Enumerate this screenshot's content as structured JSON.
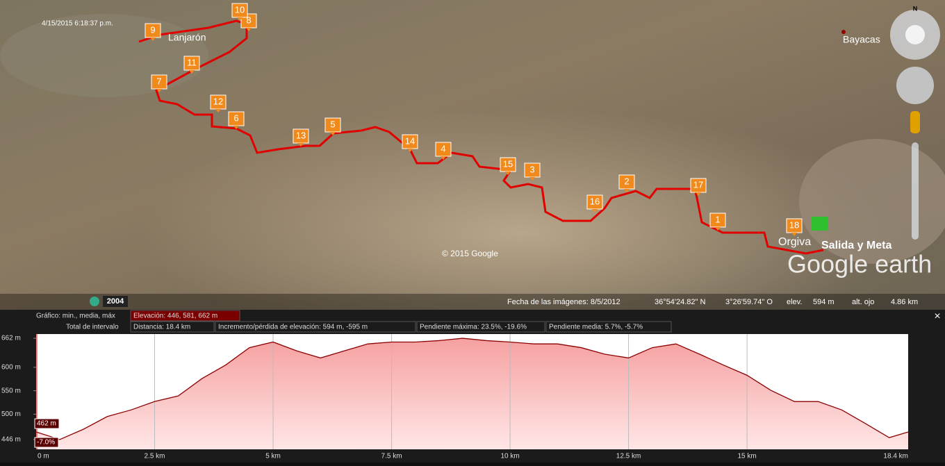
{
  "map": {
    "timestamp": "4/15/2015  6:18:37 p.m.",
    "places": [
      "Lanjarón",
      "Bayacas",
      "Orgiva",
      "Salida y Meta"
    ],
    "copyright": "© 2015 Google",
    "logo": "Google earth",
    "compass": "N",
    "year": "2004",
    "markers": [
      "1",
      "2",
      "3",
      "4",
      "5",
      "6",
      "7",
      "8",
      "9",
      "10",
      "11",
      "12",
      "13",
      "14",
      "15",
      "16",
      "17",
      "18"
    ]
  },
  "status_bar": {
    "imagery_date": "Fecha de las imágenes: 8/5/2012",
    "lat": "36°54'24.82\" N",
    "lon": "3°26'59.74\" O",
    "elev_label": "elev.",
    "elev": "594 m",
    "eye_label": "alt. ojo",
    "eye": "4.86 km"
  },
  "profile_header": {
    "graph_label": "Gráfico: min., media, máx",
    "elevation": "Elevación: 446, 581, 662 m",
    "range_label": "Total de intervalo",
    "distance": "Distancia: 18.4 km",
    "gain": "Incremento/pérdida de elevación: 594 m, -595 m",
    "max_slope": "Pendiente máxima: 23.5%, -19.6%",
    "avg_slope": "Pendiente media: 5.7%, -5.7%",
    "close": "×"
  },
  "chart_data": {
    "type": "area",
    "color": "#8b0000",
    "x": [
      0,
      0.5,
      1,
      1.5,
      2,
      2.5,
      3,
      3.5,
      4,
      4.5,
      5,
      5.5,
      6,
      6.5,
      7,
      7.5,
      8,
      8.5,
      9,
      9.5,
      10,
      10.5,
      11,
      11.5,
      12,
      12.5,
      13,
      13.5,
      14,
      14.5,
      15,
      15.5,
      16,
      16.5,
      17,
      17.5,
      18,
      18.4
    ],
    "values": [
      462,
      446,
      468,
      495,
      509,
      527,
      539,
      576,
      605,
      642,
      654,
      635,
      620,
      635,
      650,
      654,
      654,
      657,
      662,
      657,
      654,
      650,
      650,
      642,
      628,
      620,
      642,
      650,
      628,
      605,
      583,
      551,
      527,
      527,
      509,
      480,
      450,
      462
    ],
    "cursor": {
      "elevation": "462 m",
      "slope": "-7.0%"
    },
    "xlim": [
      0,
      18.4
    ],
    "ylim": [
      425,
      671
    ],
    "grid": "x",
    "xticks": [
      {
        "value": 0,
        "label": "0 m"
      },
      {
        "value": 2.5,
        "label": "2.5 km"
      },
      {
        "value": 5,
        "label": "5 km"
      },
      {
        "value": 7.5,
        "label": "7.5 km"
      },
      {
        "value": 10,
        "label": "10 km"
      },
      {
        "value": 12.5,
        "label": "12.5 km"
      },
      {
        "value": 15,
        "label": "15 km"
      },
      {
        "value": 18.4,
        "label": "18.4 km"
      }
    ],
    "yticks": [
      {
        "value": 662,
        "label": "662 m"
      },
      {
        "value": 600,
        "label": "600 m"
      },
      {
        "value": 550,
        "label": "550 m"
      },
      {
        "value": 500,
        "label": "500 m"
      },
      {
        "value": 446,
        "label": "446 m"
      }
    ]
  }
}
